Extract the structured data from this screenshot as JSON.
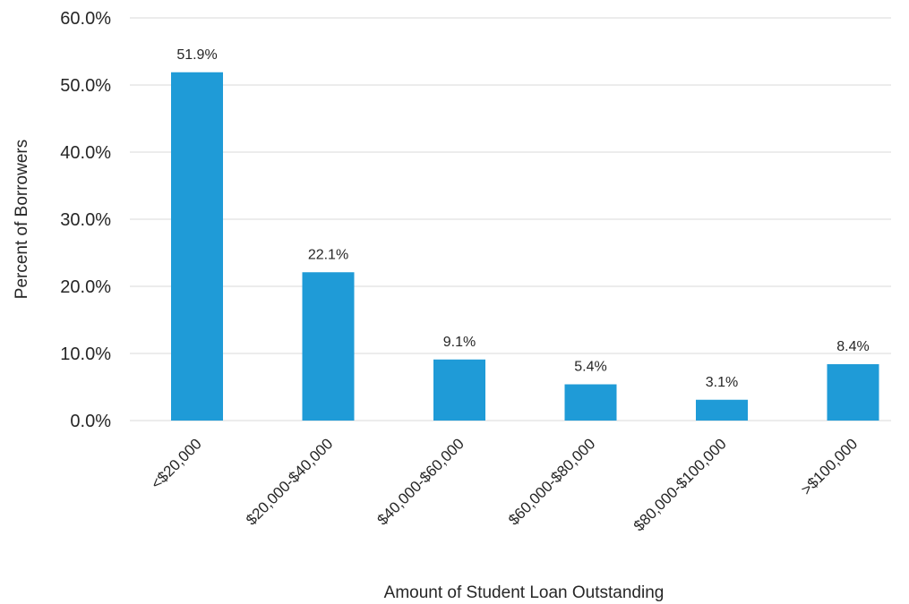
{
  "chart_data": {
    "type": "bar",
    "title": "",
    "xlabel": "Amount of Student Loan Outstanding",
    "ylabel": "Percent of Borrowers",
    "categories": [
      "<$20,000",
      "$20,000-$40,000",
      "$40,000-$60,000",
      "$60,000-$80,000",
      "$80,000-$100,000",
      ">$100,000"
    ],
    "values": [
      51.9,
      22.1,
      9.1,
      5.4,
      3.1,
      8.4
    ],
    "data_labels": [
      "51.9%",
      "22.1%",
      "9.1%",
      "5.4%",
      "3.1%",
      "8.4%"
    ],
    "y_ticks": [
      0,
      10,
      20,
      30,
      40,
      50,
      60
    ],
    "y_tick_labels": [
      "0.0%",
      "10.0%",
      "20.0%",
      "30.0%",
      "40.0%",
      "50.0%",
      "60.0%"
    ],
    "ylim": [
      0,
      60
    ],
    "grid": true,
    "legend": "none",
    "bar_color": "#1f9bd7"
  }
}
